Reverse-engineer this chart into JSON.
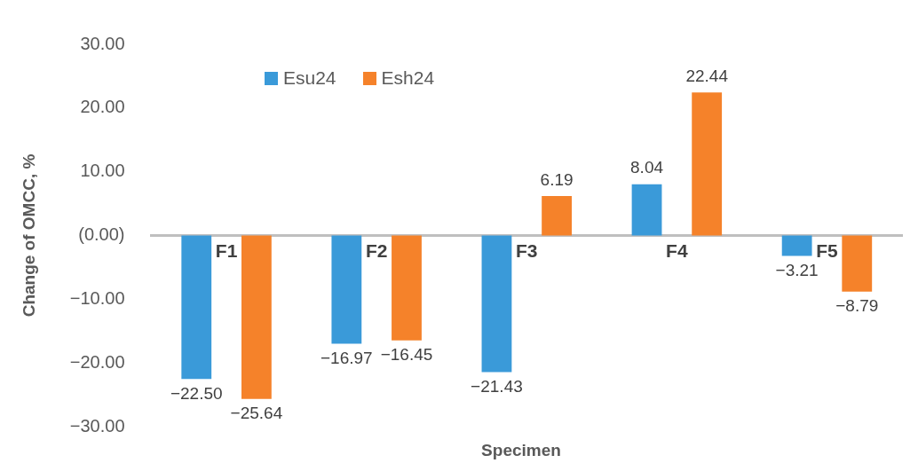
{
  "chart_data": {
    "type": "bar",
    "xlabel": "Specimen",
    "ylabel": "Change of OMCC, %",
    "categories": [
      "F1",
      "F2",
      "F3",
      "F4",
      "F5"
    ],
    "series": [
      {
        "name": "Esu24",
        "color": "#3a9ad9",
        "values": [
          -22.5,
          -16.97,
          -21.43,
          8.04,
          -3.21
        ],
        "value_labels": [
          "−22.50",
          "−16.97",
          "−21.43",
          "8.04",
          "−3.21"
        ]
      },
      {
        "name": "Esh24",
        "color": "#f5822a",
        "values": [
          -25.64,
          -16.45,
          6.19,
          22.44,
          -8.79
        ],
        "value_labels": [
          "−25.64",
          "−16.45",
          "6.19",
          "22.44",
          "−8.79"
        ]
      }
    ],
    "ylim": [
      -30,
      30
    ],
    "yticks": [
      {
        "value": -30,
        "label": "−30.00"
      },
      {
        "value": -20,
        "label": "−20.00"
      },
      {
        "value": -10,
        "label": "−10.00"
      },
      {
        "value": 0,
        "label": "(0.00)"
      },
      {
        "value": 10,
        "label": "10.00"
      },
      {
        "value": 20,
        "label": "20.00"
      },
      {
        "value": 30,
        "label": "30.00"
      }
    ],
    "grid": false,
    "legend": "top left"
  }
}
